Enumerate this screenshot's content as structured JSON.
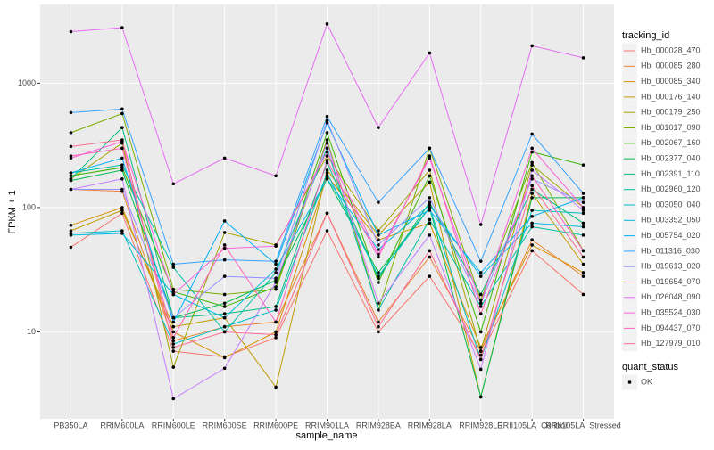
{
  "chart_data": {
    "type": "line",
    "log_y": true,
    "grid": true,
    "legend_position": "right",
    "x_label": "sample_name",
    "y_label": "FPKM + 1",
    "legend_title": "tracking_id",
    "status_legend": {
      "title": "quant_status",
      "items": [
        "OK"
      ]
    },
    "point_color": "#000000",
    "categories": [
      "PB350LA",
      "RRIM600LA",
      "RRIM600LE",
      "RRIM600SE",
      "RRIM600PE",
      "RRIM901LA",
      "RRIM928BA",
      "RRIM928LA",
      "RRIM928LE",
      "RRII105LA_Control",
      "RRII105LA_Stressed"
    ],
    "ylim": [
      2,
      4300
    ],
    "yticks": [
      10,
      100,
      1000
    ],
    "series": [
      {
        "name": "Hb_000028_470",
        "color": "#F8766D",
        "values": [
          48,
          90,
          7,
          6.3,
          9,
          65,
          10,
          28,
          6.5,
          45,
          20
        ]
      },
      {
        "name": "Hb_000085_280",
        "color": "#EA8331",
        "values": [
          140,
          135,
          8.5,
          11,
          12,
          90,
          12,
          40,
          7,
          55,
          28
        ]
      },
      {
        "name": "Hb_000085_340",
        "color": "#D89000",
        "values": [
          72,
          100,
          10,
          6.2,
          10,
          180,
          55,
          75,
          7.5,
          50,
          30
        ]
      },
      {
        "name": "Hb_000176_140",
        "color": "#C09B00",
        "values": [
          65,
          95,
          11,
          13,
          3.6,
          200,
          60,
          160,
          3,
          130,
          35
        ]
      },
      {
        "name": "Hb_000179_250",
        "color": "#A3A500",
        "values": [
          170,
          330,
          5.2,
          63,
          50,
          260,
          65,
          200,
          7,
          220,
          100
        ]
      },
      {
        "name": "Hb_001017_090",
        "color": "#7CAE00",
        "values": [
          400,
          570,
          22,
          20,
          22,
          350,
          15,
          300,
          18,
          230,
          45
        ]
      },
      {
        "name": "Hb_002067_160",
        "color": "#39B600",
        "values": [
          180,
          210,
          21,
          16,
          23,
          400,
          25,
          180,
          10,
          280,
          220
        ]
      },
      {
        "name": "Hb_002377_040",
        "color": "#00BB4E",
        "values": [
          165,
          200,
          13,
          17,
          26,
          170,
          30,
          100,
          3,
          120,
          120
        ]
      },
      {
        "name": "Hb_002391_110",
        "color": "#00BF7D",
        "values": [
          170,
          440,
          13,
          14,
          16,
          230,
          27,
          110,
          20,
          140,
          75
        ]
      },
      {
        "name": "Hb_002960_120",
        "color": "#00C1A3",
        "values": [
          190,
          220,
          33,
          10,
          30,
          300,
          15,
          80,
          16,
          70,
          60
        ]
      },
      {
        "name": "Hb_003050_040",
        "color": "#00BFC4",
        "values": [
          62,
          65,
          8,
          11,
          15,
          190,
          28,
          100,
          6,
          95,
          90
        ]
      },
      {
        "name": "Hb_003352_050",
        "color": "#00BAE0",
        "values": [
          60,
          62,
          20,
          13,
          32,
          170,
          46,
          105,
          28,
          75,
          70
        ]
      },
      {
        "name": "Hb_005754_020",
        "color": "#00B0F6",
        "values": [
          190,
          250,
          12,
          78,
          35,
          480,
          60,
          95,
          30,
          85,
          120
        ]
      },
      {
        "name": "Hb_011316_030",
        "color": "#35A2FF",
        "values": [
          580,
          620,
          35,
          38,
          37,
          540,
          110,
          300,
          37,
          390,
          130
        ]
      },
      {
        "name": "Hb_019613_020",
        "color": "#9590FF",
        "values": [
          140,
          140,
          13,
          28,
          27,
          500,
          50,
          120,
          17,
          170,
          110
        ]
      },
      {
        "name": "Hb_019654_070",
        "color": "#C77CFF",
        "values": [
          140,
          170,
          2.9,
          5.1,
          25,
          330,
          17,
          60,
          5,
          200,
          95
        ]
      },
      {
        "name": "Hb_026048_090",
        "color": "#E76BF3",
        "values": [
          2600,
          2800,
          155,
          250,
          180,
          3000,
          440,
          1750,
          73,
          2000,
          1600
        ]
      },
      {
        "name": "Hb_035524_030",
        "color": "#FA62DB",
        "values": [
          250,
          340,
          20,
          47,
          49,
          280,
          42,
          250,
          17,
          300,
          100
        ]
      },
      {
        "name": "Hb_094437_070",
        "color": "#FF62BC",
        "values": [
          260,
          300,
          9,
          50,
          12,
          240,
          40,
          260,
          14,
          180,
          45
        ]
      },
      {
        "name": "Hb_127979_010",
        "color": "#FF6C91",
        "values": [
          310,
          350,
          7.5,
          10,
          9.5,
          90,
          11,
          45,
          6,
          150,
          40
        ]
      }
    ]
  }
}
